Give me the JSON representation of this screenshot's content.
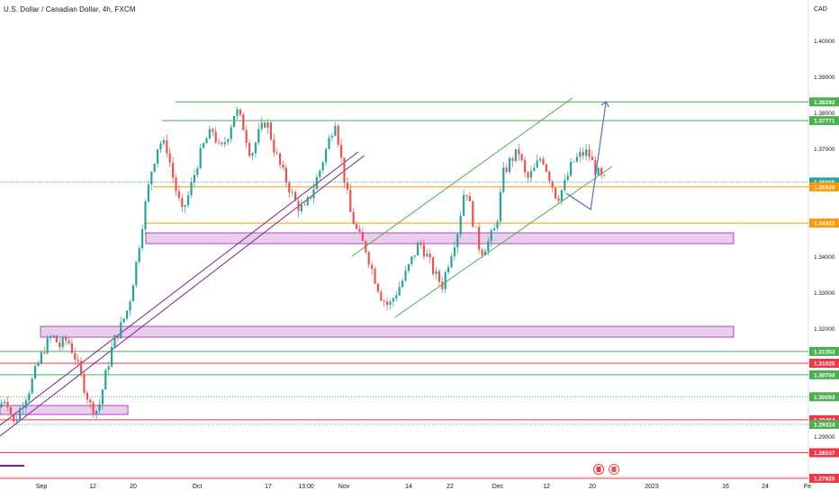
{
  "header": {
    "title": "U.S. Dollar / Canadian Dollar, 4h, FXCM",
    "currency": "CAD"
  },
  "axis": {
    "y_ticks": [
      "1.40000",
      "1.39000",
      "1.38000",
      "1.37000",
      "1.34000",
      "1.33000",
      "1.32000",
      "1.29000"
    ],
    "x_ticks": [
      "Sep",
      "12",
      "20",
      "Oct",
      "17",
      "13:00",
      "Nov",
      "14",
      "22",
      "Dec",
      "12",
      "20",
      "2023",
      "16",
      "24",
      "Fe"
    ]
  },
  "colors": {
    "up": "#26a69a",
    "down": "#ef5350",
    "green_level": "#4caf50",
    "red_level": "#f23645",
    "orange_level": "#ff9800",
    "purple": "#7b1fa2",
    "zone_fill": "#e1bee7",
    "channel": "#4caf50",
    "arrow": "#5c6bc0",
    "current_price": "#26a69a"
  },
  "chart_data": {
    "type": "candlestick",
    "title": "U.S. Dollar / Canadian Dollar, 4h, FXCM",
    "ylabel": "CAD",
    "ylim": [
      1.2765,
      1.4115
    ],
    "y_ticks": [
      1.4,
      1.39,
      1.38,
      1.37,
      1.34,
      1.33,
      1.32,
      1.29
    ],
    "x_ticks": [
      "Sep",
      "12",
      "20",
      "Oct",
      "17",
      "13:00",
      "Nov",
      "14",
      "22",
      "Dec",
      "12",
      "20",
      "2023",
      "16",
      "24",
      "Fe"
    ],
    "price_path": [
      [
        0,
        1.298
      ],
      [
        2.5,
        1.301
      ],
      [
        5,
        1.2935
      ],
      [
        7.5,
        1.2985
      ],
      [
        10,
        1.303
      ],
      [
        12.5,
        1.309
      ],
      [
        15,
        1.3145
      ],
      [
        17.5,
        1.318
      ],
      [
        20,
        1.315
      ],
      [
        22.5,
        1.317
      ],
      [
        25,
        1.312
      ],
      [
        27.5,
        1.305
      ],
      [
        30,
        1.2985
      ],
      [
        32.5,
        1.297
      ],
      [
        35,
        1.307
      ],
      [
        37.5,
        1.316
      ],
      [
        40,
        1.3205
      ],
      [
        42.5,
        1.326
      ],
      [
        45,
        1.338
      ],
      [
        47.5,
        1.352
      ],
      [
        50,
        1.364
      ],
      [
        52.5,
        1.372
      ],
      [
        55,
        1.37
      ],
      [
        57.5,
        1.36
      ],
      [
        60,
        1.352
      ],
      [
        62.5,
        1.358
      ],
      [
        65,
        1.366
      ],
      [
        67.5,
        1.372
      ],
      [
        70,
        1.375
      ],
      [
        72.5,
        1.369
      ],
      [
        75,
        1.374
      ],
      [
        77.5,
        1.381
      ],
      [
        80,
        1.376
      ],
      [
        82.5,
        1.368
      ],
      [
        85,
        1.374
      ],
      [
        87.5,
        1.378
      ],
      [
        90,
        1.37
      ],
      [
        92.5,
        1.364
      ],
      [
        95,
        1.359
      ],
      [
        97.5,
        1.354
      ],
      [
        100,
        1.353
      ],
      [
        102.5,
        1.358
      ],
      [
        105,
        1.364
      ],
      [
        107.5,
        1.371
      ],
      [
        110,
        1.378
      ],
      [
        112.5,
        1.364
      ],
      [
        115,
        1.352
      ],
      [
        117.5,
        1.346
      ],
      [
        120,
        1.342
      ],
      [
        122.5,
        1.335
      ],
      [
        125,
        1.329
      ],
      [
        127.5,
        1.326
      ],
      [
        130,
        1.33
      ],
      [
        132.5,
        1.334
      ],
      [
        135,
        1.339
      ],
      [
        137.5,
        1.344
      ],
      [
        140,
        1.34
      ],
      [
        142.5,
        1.335
      ],
      [
        145,
        1.332
      ],
      [
        147.5,
        1.34
      ],
      [
        150,
        1.347
      ],
      [
        152.5,
        1.36
      ],
      [
        155,
        1.35
      ],
      [
        157.5,
        1.341
      ],
      [
        160,
        1.344
      ],
      [
        162.5,
        1.348
      ],
      [
        165,
        1.363
      ],
      [
        167.5,
        1.367
      ],
      [
        170,
        1.369
      ],
      [
        172.5,
        1.361
      ],
      [
        175,
        1.364
      ],
      [
        177.5,
        1.368
      ],
      [
        180,
        1.362
      ],
      [
        182.5,
        1.356
      ],
      [
        185,
        1.36
      ],
      [
        187.5,
        1.366
      ],
      [
        190,
        1.368
      ],
      [
        192.5,
        1.369
      ],
      [
        195,
        1.364
      ],
      [
        197.5,
        1.361
      ]
    ],
    "horizontal_levels": [
      {
        "label": "1.38292",
        "value": 1.38292,
        "color": "green"
      },
      {
        "label": "1.37771",
        "value": 1.37771,
        "color": "green"
      },
      {
        "label": "1.36065",
        "value": 1.36065,
        "color": "current"
      },
      {
        "label": "1.35929",
        "value": 1.35929,
        "color": "orange"
      },
      {
        "label": "1.34923",
        "value": 1.34923,
        "color": "orange"
      },
      {
        "label": "1.31353",
        "value": 1.31353,
        "color": "green"
      },
      {
        "label": "1.31025",
        "value": 1.31025,
        "color": "red"
      },
      {
        "label": "1.30704",
        "value": 1.30704,
        "color": "green"
      },
      {
        "label": "1.30093",
        "value": 1.30093,
        "color": "green_dotted"
      },
      {
        "label": "1.29454",
        "value": 1.29454,
        "color": "red"
      },
      {
        "label": "1.29324",
        "value": 1.29324,
        "color": "green_dotted"
      },
      {
        "label": "1.28537",
        "value": 1.28537,
        "color": "red"
      },
      {
        "label": "1.27825",
        "value": 1.27825,
        "color": "red"
      }
    ],
    "zones": [
      {
        "y_top": 1.3465,
        "y_bottom": 1.3445
      },
      {
        "y_top": 1.3205,
        "y_bottom": 1.3185
      },
      {
        "y_top": 1.2985,
        "y_bottom": 1.297
      }
    ],
    "channel_lines": [
      {
        "from": [
          115,
          1.34
        ],
        "to": [
          187,
          1.384
        ]
      },
      {
        "from": [
          129,
          1.323
        ],
        "to": [
          200,
          1.365
        ]
      }
    ],
    "trendlines": [
      {
        "from": [
          0,
          1.293
        ],
        "to": [
          117,
          1.369
        ]
      },
      {
        "from": [
          0,
          1.29
        ],
        "to": [
          119,
          1.368
        ]
      }
    ],
    "projection_arrow": [
      [
        185,
        1.3575
      ],
      [
        193,
        1.353
      ],
      [
        198,
        1.383
      ]
    ]
  }
}
